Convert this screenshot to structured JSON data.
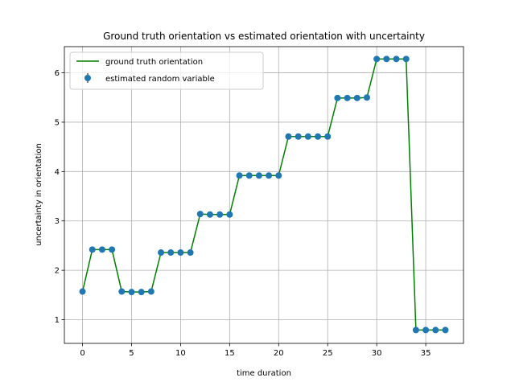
{
  "chart_data": {
    "type": "line",
    "title": "Ground truth orientation vs estimated orientation with uncertainty",
    "xlabel": "time duration",
    "ylabel": "uncertainty in orientation",
    "xlim": [
      -1.85,
      38.85
    ],
    "ylim": [
      0.52,
      6.53
    ],
    "xticks": [
      0,
      5,
      10,
      15,
      20,
      25,
      30,
      35
    ],
    "yticks": [
      1,
      2,
      3,
      4,
      5,
      6
    ],
    "grid": true,
    "legend_position": "upper-left",
    "x": [
      0,
      1,
      2,
      3,
      4,
      5,
      6,
      7,
      8,
      9,
      10,
      11,
      12,
      13,
      14,
      15,
      16,
      17,
      18,
      19,
      20,
      21,
      22,
      23,
      24,
      25,
      26,
      27,
      28,
      29,
      30,
      31,
      32,
      33,
      34,
      35,
      36,
      37
    ],
    "series": [
      {
        "name": "ground truth orientation",
        "kind": "line",
        "color": "#008000",
        "values": [
          1.57,
          2.42,
          2.42,
          2.42,
          1.57,
          1.56,
          1.56,
          1.57,
          2.36,
          2.36,
          2.36,
          2.36,
          3.14,
          3.13,
          3.13,
          3.13,
          3.92,
          3.92,
          3.92,
          3.92,
          3.92,
          4.71,
          4.71,
          4.71,
          4.71,
          4.71,
          5.49,
          5.49,
          5.49,
          5.5,
          6.28,
          6.28,
          6.28,
          6.28,
          0.79,
          0.79,
          0.79,
          0.79
        ]
      },
      {
        "name": "estimated random variable",
        "kind": "errorbar-points",
        "color": "#1f77b4",
        "values": [
          1.57,
          2.42,
          2.42,
          2.42,
          1.57,
          1.56,
          1.56,
          1.57,
          2.36,
          2.36,
          2.36,
          2.36,
          3.14,
          3.13,
          3.13,
          3.13,
          3.92,
          3.92,
          3.92,
          3.92,
          3.92,
          4.71,
          4.71,
          4.71,
          4.71,
          4.71,
          5.49,
          5.49,
          5.49,
          5.5,
          6.28,
          6.28,
          6.28,
          6.28,
          0.79,
          0.79,
          0.79,
          0.79
        ]
      }
    ]
  }
}
